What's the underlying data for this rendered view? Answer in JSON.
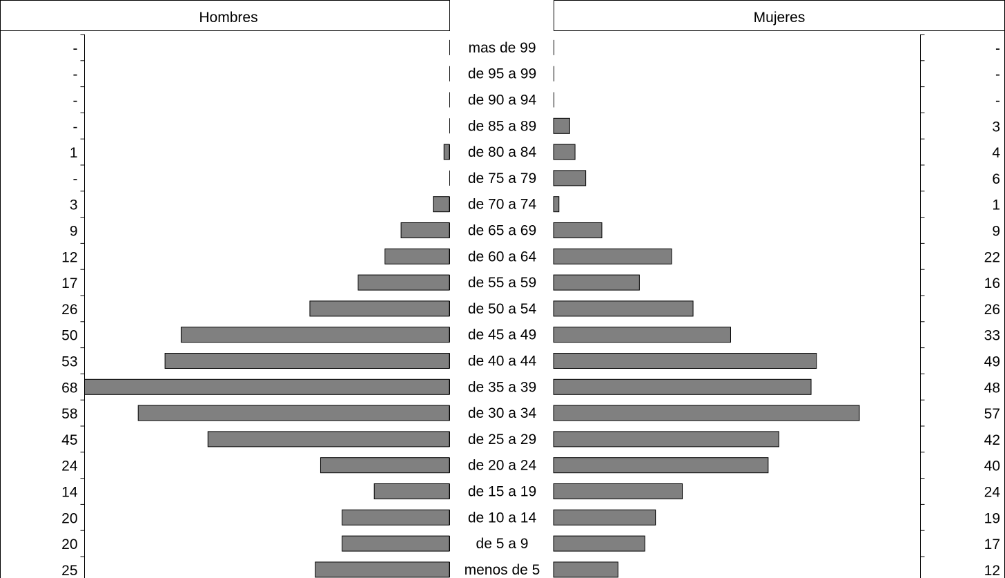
{
  "chart_data": {
    "type": "bar",
    "layout": "population-pyramid",
    "header": {
      "left": "Hombres",
      "right": "Mujeres"
    },
    "categories": [
      "mas de 99",
      "de 95 a 99",
      "de 90 a 94",
      "de 85 a 89",
      "de 80 a 84",
      "de 75 a 79",
      "de 70 a 74",
      "de 65 a 69",
      "de 60 a 64",
      "de 55 a 59",
      "de 50 a 54",
      "de 45 a 49",
      "de 40 a 44",
      "de 35 a 39",
      "de 30 a 34",
      "de 25 a 29",
      "de 20 a 24",
      "de 15 a 19",
      "de 10 a 14",
      "de 5 a 9",
      "menos de 5"
    ],
    "series": [
      {
        "name": "Hombres",
        "values": [
          0,
          0,
          0,
          0,
          1,
          0,
          3,
          9,
          12,
          17,
          26,
          50,
          53,
          68,
          58,
          45,
          24,
          14,
          20,
          20,
          25
        ],
        "labels": [
          "-",
          "-",
          "-",
          "-",
          "1",
          "-",
          "3",
          "9",
          "12",
          "17",
          "26",
          "50",
          "53",
          "68",
          "58",
          "45",
          "24",
          "14",
          "20",
          "20",
          "25"
        ]
      },
      {
        "name": "Mujeres",
        "values": [
          0,
          0,
          0,
          3,
          4,
          6,
          1,
          9,
          22,
          16,
          26,
          33,
          49,
          48,
          57,
          42,
          40,
          24,
          19,
          17,
          12
        ],
        "labels": [
          "-",
          "-",
          "-",
          "3",
          "4",
          "6",
          "1",
          "9",
          "22",
          "16",
          "26",
          "33",
          "49",
          "48",
          "57",
          "42",
          "40",
          "24",
          "19",
          "17",
          "12"
        ]
      }
    ],
    "bar_color": "#808080",
    "xlim": [
      0,
      68
    ],
    "grid": false,
    "legend": "none"
  }
}
